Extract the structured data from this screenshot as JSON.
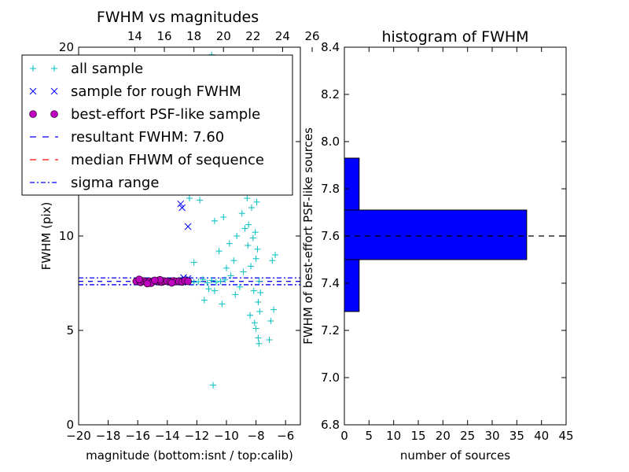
{
  "chart_data": [
    {
      "type": "scatter",
      "title": "FWHM vs magnitudes",
      "xlabel": "magnitude (bottom:isnt / top:calib)",
      "ylabel": "FWHM (pix)",
      "xlim": [
        -20,
        -5
      ],
      "ylim": [
        0,
        20
      ],
      "xticks": [
        -20,
        -18,
        -16,
        -14,
        -12,
        -10,
        -8,
        -6
      ],
      "xtick_labels": [
        "−20",
        "−18",
        "−16",
        "−14",
        "−12",
        "−10",
        "−8",
        "−6"
      ],
      "yticks": [
        0,
        5,
        10,
        15,
        20
      ],
      "ytick_labels": [
        "0",
        "5",
        "10",
        "15",
        "20"
      ],
      "top_xticks": [
        14,
        16,
        18,
        20,
        22,
        24,
        26
      ],
      "top_xtick_labels": [
        "14",
        "16",
        "18",
        "20",
        "22",
        "24",
        "26"
      ],
      "top_axis_offset": 30.2,
      "legend": {
        "position": "upper-left",
        "entries": [
          {
            "label": "all sample",
            "marker": "+",
            "color": "#00bfbf"
          },
          {
            "label": "sample for rough FWHM",
            "marker": "x",
            "color": "#0000ff"
          },
          {
            "label": "best-effort PSF-like sample",
            "marker": "o",
            "color": "#bf00bf"
          },
          {
            "label": "resultant FWHM: 7.60",
            "style": "dashed",
            "color": "#0000ff"
          },
          {
            "label": "median FHWM of sequence",
            "style": "dashed",
            "color": "#ff0000"
          },
          {
            "label": "sigma range",
            "style": "dashdot",
            "color": "#0000ff"
          }
        ]
      },
      "series": [
        {
          "name": "all sample",
          "marker": "+",
          "color": "#00bfbf",
          "points": [
            [
              -15.8,
              7.55
            ],
            [
              -15.5,
              7.6
            ],
            [
              -15.2,
              7.58
            ],
            [
              -14.9,
              7.62
            ],
            [
              -14.6,
              7.57
            ],
            [
              -14.3,
              7.6
            ],
            [
              -14.0,
              7.63
            ],
            [
              -13.7,
              7.56
            ],
            [
              -13.4,
              7.6
            ],
            [
              -13.1,
              7.59
            ],
            [
              -12.8,
              7.62
            ],
            [
              -12.5,
              7.6
            ],
            [
              -12.2,
              7.55
            ],
            [
              -11.9,
              7.58
            ],
            [
              -11.6,
              7.7
            ],
            [
              -11.3,
              7.52
            ],
            [
              -11.0,
              7.65
            ],
            [
              -10.7,
              7.55
            ],
            [
              -10.4,
              7.6
            ],
            [
              -10.1,
              7.68
            ],
            [
              -12.2,
              8.6
            ],
            [
              -11.5,
              6.6
            ],
            [
              -11.2,
              7.2
            ],
            [
              -10.8,
              7.1
            ],
            [
              -12.5,
              12.0
            ],
            [
              -11.8,
              11.9
            ],
            [
              -11.0,
              19.6
            ],
            [
              -11.3,
              16.0
            ],
            [
              -10.9,
              2.1
            ],
            [
              -10.3,
              6.4
            ],
            [
              -10.5,
              9.2
            ],
            [
              -10.8,
              10.8
            ],
            [
              -10.2,
              11.0
            ],
            [
              -9.9,
              12.8
            ],
            [
              -9.6,
              13.2
            ],
            [
              -9.8,
              9.6
            ],
            [
              -9.5,
              8.7
            ],
            [
              -9.3,
              10.0
            ],
            [
              -9.2,
              12.4
            ],
            [
              -9.0,
              14.3
            ],
            [
              -9.1,
              7.3
            ],
            [
              -8.95,
              11.2
            ],
            [
              -8.85,
              8.1
            ],
            [
              -8.8,
              15.5
            ],
            [
              -8.7,
              13.0
            ],
            [
              -8.6,
              12.0
            ],
            [
              -8.55,
              9.5
            ],
            [
              -8.5,
              10.6
            ],
            [
              -8.45,
              16.4
            ],
            [
              -8.4,
              14.5
            ],
            [
              -8.35,
              8.4
            ],
            [
              -8.3,
              11.5
            ],
            [
              -8.25,
              13.8
            ],
            [
              -8.2,
              9.9
            ],
            [
              -8.15,
              7.1
            ],
            [
              -8.1,
              12.7
            ],
            [
              -8.05,
              10.2
            ],
            [
              -8.0,
              8.8
            ],
            [
              -7.95,
              11.8
            ],
            [
              -7.9,
              9.3
            ],
            [
              -7.85,
              6.5
            ],
            [
              -7.8,
              7.6
            ],
            [
              -7.75,
              6.0
            ],
            [
              -7.7,
              7.0
            ],
            [
              -8.4,
              5.8
            ],
            [
              -8.1,
              5.4
            ],
            [
              -8.0,
              5.1
            ],
            [
              -7.85,
              4.6
            ],
            [
              -7.8,
              4.3
            ],
            [
              -7.1,
              4.5
            ],
            [
              -7.0,
              5.5
            ],
            [
              -6.8,
              6.1
            ],
            [
              -6.9,
              8.7
            ],
            [
              -6.7,
              9.0
            ],
            [
              -8.6,
              13.6
            ],
            [
              -8.3,
              14.9
            ],
            [
              -8.75,
              10.4
            ],
            [
              -9.4,
              6.9
            ],
            [
              -9.7,
              7.9
            ],
            [
              -10.0,
              8.3
            ]
          ]
        },
        {
          "name": "sample for rough FWHM",
          "marker": "x",
          "color": "#0000ff",
          "points": [
            [
              -13.1,
              11.7
            ],
            [
              -13.0,
              11.5
            ],
            [
              -12.6,
              10.5
            ],
            [
              -13.5,
              13.3
            ],
            [
              -12.9,
              7.8
            ],
            [
              -12.6,
              7.75
            ],
            [
              -12.8,
              7.68
            ]
          ]
        },
        {
          "name": "best-effort PSF-like sample",
          "marker": "o",
          "color": "#bf00bf",
          "points": [
            [
              -16.1,
              7.6
            ],
            [
              -15.8,
              7.55
            ],
            [
              -15.6,
              7.62
            ],
            [
              -15.4,
              7.58
            ],
            [
              -15.2,
              7.6
            ],
            [
              -15.0,
              7.57
            ],
            [
              -14.8,
              7.63
            ],
            [
              -14.6,
              7.59
            ],
            [
              -14.4,
              7.56
            ],
            [
              -14.2,
              7.61
            ],
            [
              -14.0,
              7.6
            ],
            [
              -13.8,
              7.58
            ],
            [
              -13.6,
              7.62
            ],
            [
              -13.4,
              7.59
            ],
            [
              -13.2,
              7.6
            ],
            [
              -13.0,
              7.57
            ],
            [
              -12.8,
              7.63
            ],
            [
              -12.6,
              7.6
            ],
            [
              -15.9,
              7.7
            ],
            [
              -15.1,
              7.5
            ],
            [
              -14.5,
              7.68
            ],
            [
              -13.7,
              7.52
            ],
            [
              -15.35,
              7.48
            ],
            [
              -14.85,
              7.65
            ]
          ]
        }
      ],
      "lines": {
        "resultant_fwhm": 7.6,
        "median_fwhm": 7.6,
        "sigma_low": 7.42,
        "sigma_high": 7.78
      },
      "grid": false
    },
    {
      "type": "bar",
      "orientation": "horizontal",
      "title": "histogram of FWHM",
      "xlabel": "number of sources",
      "ylabel": "FWHM of best-effort PSF-like sources",
      "xlim": [
        0,
        45
      ],
      "ylim": [
        6.8,
        8.4
      ],
      "xticks": [
        0,
        5,
        10,
        15,
        20,
        25,
        30,
        35,
        40,
        45
      ],
      "xtick_labels": [
        "0",
        "5",
        "10",
        "15",
        "20",
        "25",
        "30",
        "35",
        "40",
        "45"
      ],
      "yticks": [
        6.8,
        7.0,
        7.2,
        7.4,
        7.6,
        7.8,
        8.0,
        8.2,
        8.4
      ],
      "ytick_labels": [
        "6.8",
        "7.0",
        "7.2",
        "7.4",
        "7.6",
        "7.8",
        "8.0",
        "8.2",
        "8.4"
      ],
      "bins": [
        {
          "from": 7.28,
          "to": 7.5,
          "count": 3
        },
        {
          "from": 7.5,
          "to": 7.71,
          "count": 37
        },
        {
          "from": 7.71,
          "to": 7.93,
          "count": 3
        }
      ],
      "color": "#0000ff",
      "reference_line": 7.6,
      "grid": false
    }
  ]
}
